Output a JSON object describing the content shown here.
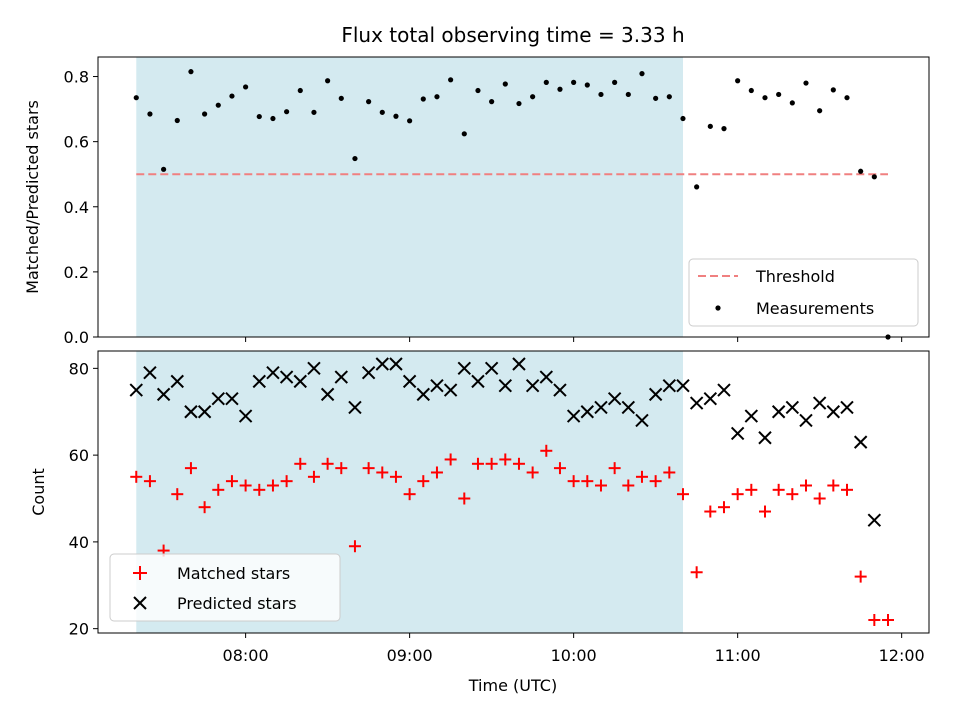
{
  "chart_data": [
    {
      "type": "scatter",
      "title": "Flux total observing time = 3.33 h",
      "xlabel": "",
      "ylabel": "Matched/Predicted stars",
      "xlim": [
        "07:06",
        "12:10"
      ],
      "ylim": [
        0,
        0.86
      ],
      "yticks": [
        "0.0",
        "0.2",
        "0.4",
        "0.6",
        "0.8"
      ],
      "grid": false,
      "legend_position": "lower-right",
      "shaded_span": {
        "start": "07:20",
        "end": "10:40",
        "color": "#d4eaf0"
      },
      "threshold": {
        "name": "Threshold",
        "value": 0.5,
        "start": "07:20",
        "end": "11:55",
        "color": "#f08080"
      },
      "series": [
        {
          "name": "Measurements",
          "color": "#000000",
          "x": [
            "07:20",
            "07:25",
            "07:30",
            "07:35",
            "07:40",
            "07:45",
            "07:50",
            "07:55",
            "08:00",
            "08:05",
            "08:10",
            "08:15",
            "08:20",
            "08:25",
            "08:30",
            "08:35",
            "08:40",
            "08:45",
            "08:50",
            "08:55",
            "09:00",
            "09:05",
            "09:10",
            "09:15",
            "09:20",
            "09:25",
            "09:30",
            "09:35",
            "09:40",
            "09:45",
            "09:50",
            "09:55",
            "10:00",
            "10:05",
            "10:10",
            "10:15",
            "10:20",
            "10:25",
            "10:30",
            "10:35",
            "10:40",
            "10:45",
            "10:50",
            "10:55",
            "11:00",
            "11:05",
            "11:10",
            "11:15",
            "11:20",
            "11:25",
            "11:30",
            "11:35",
            "11:40",
            "11:45",
            "11:50",
            "11:55"
          ],
          "y": [
            0.735,
            0.685,
            0.515,
            0.665,
            0.815,
            0.685,
            0.712,
            0.74,
            0.768,
            0.677,
            0.671,
            0.692,
            0.757,
            0.69,
            0.787,
            0.733,
            0.548,
            0.723,
            0.69,
            0.678,
            0.664,
            0.731,
            0.738,
            0.79,
            0.624,
            0.757,
            0.723,
            0.777,
            0.717,
            0.738,
            0.782,
            0.761,
            0.782,
            0.774,
            0.745,
            0.782,
            0.745,
            0.809,
            0.733,
            0.738,
            0.671,
            0.461,
            0.647,
            0.64,
            0.787,
            0.757,
            0.735,
            0.745,
            0.719,
            0.78,
            0.695,
            0.759,
            0.735,
            0.509,
            0.492,
            0.0
          ]
        }
      ]
    },
    {
      "type": "scatter",
      "title": "",
      "xlabel": "Time (UTC)",
      "ylabel": "Count",
      "xlim": [
        "07:06",
        "12:10"
      ],
      "ylim": [
        19,
        84
      ],
      "xticks": [
        "08:00",
        "09:00",
        "10:00",
        "11:00",
        "12:00"
      ],
      "yticks": [
        "20",
        "40",
        "60",
        "80"
      ],
      "grid": false,
      "legend_position": "lower-left",
      "shaded_span": {
        "start": "07:20",
        "end": "10:40",
        "color": "#d4eaf0"
      },
      "series": [
        {
          "name": "Matched stars",
          "marker": "plus",
          "color": "#ff0000",
          "x": [
            "07:20",
            "07:25",
            "07:30",
            "07:35",
            "07:40",
            "07:45",
            "07:50",
            "07:55",
            "08:00",
            "08:05",
            "08:10",
            "08:15",
            "08:20",
            "08:25",
            "08:30",
            "08:35",
            "08:40",
            "08:45",
            "08:50",
            "08:55",
            "09:00",
            "09:05",
            "09:10",
            "09:15",
            "09:20",
            "09:25",
            "09:30",
            "09:35",
            "09:40",
            "09:45",
            "09:50",
            "09:55",
            "10:00",
            "10:05",
            "10:10",
            "10:15",
            "10:20",
            "10:25",
            "10:30",
            "10:35",
            "10:40",
            "10:45",
            "10:50",
            "10:55",
            "11:00",
            "11:05",
            "11:10",
            "11:15",
            "11:20",
            "11:25",
            "11:30",
            "11:35",
            "11:40",
            "11:45",
            "11:50",
            "11:55"
          ],
          "y": [
            55,
            54,
            38,
            51,
            57,
            48,
            52,
            54,
            53,
            52,
            53,
            54,
            58,
            55,
            58,
            57,
            39,
            57,
            56,
            55,
            51,
            54,
            56,
            59,
            50,
            58,
            58,
            59,
            58,
            56,
            61,
            57,
            54,
            54,
            53,
            57,
            53,
            55,
            54,
            56,
            51,
            33,
            47,
            48,
            51,
            52,
            47,
            52,
            51,
            53,
            50,
            53,
            52,
            32,
            22,
            22
          ]
        },
        {
          "name": "Predicted stars",
          "marker": "x",
          "color": "#000000",
          "x": [
            "07:20",
            "07:25",
            "07:30",
            "07:35",
            "07:40",
            "07:45",
            "07:50",
            "07:55",
            "08:00",
            "08:05",
            "08:10",
            "08:15",
            "08:20",
            "08:25",
            "08:30",
            "08:35",
            "08:40",
            "08:45",
            "08:50",
            "08:55",
            "09:00",
            "09:05",
            "09:10",
            "09:15",
            "09:20",
            "09:25",
            "09:30",
            "09:35",
            "09:40",
            "09:45",
            "09:50",
            "09:55",
            "10:00",
            "10:05",
            "10:10",
            "10:15",
            "10:20",
            "10:25",
            "10:30",
            "10:35",
            "10:40",
            "10:45",
            "10:50",
            "10:55",
            "11:00",
            "11:05",
            "11:10",
            "11:15",
            "11:20",
            "11:25",
            "11:30",
            "11:35",
            "11:40",
            "11:45",
            "11:50"
          ],
          "y": [
            75,
            79,
            74,
            77,
            70,
            70,
            73,
            73,
            69,
            77,
            79,
            78,
            77,
            80,
            74,
            78,
            71,
            79,
            81,
            81,
            77,
            74,
            76,
            75,
            80,
            77,
            80,
            76,
            81,
            76,
            78,
            75,
            69,
            70,
            71,
            73,
            71,
            68,
            74,
            76,
            76,
            72,
            73,
            75,
            65,
            69,
            64,
            70,
            71,
            68,
            72,
            70,
            71,
            63,
            45
          ]
        }
      ]
    }
  ]
}
